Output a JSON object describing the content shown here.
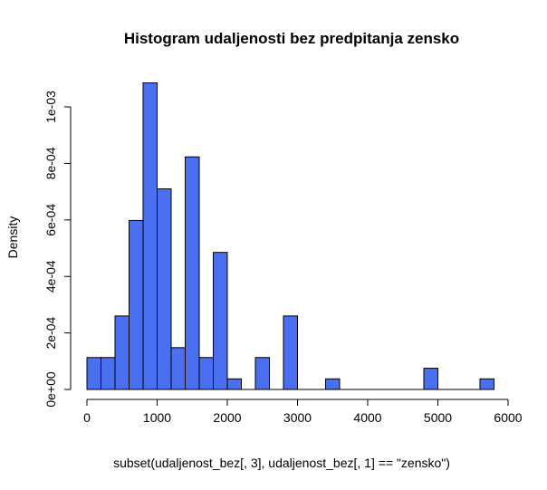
{
  "chart_data": {
    "type": "bar",
    "title": "Histogram udaljenosti bez predpitanja zensko",
    "xlabel": "subset(udaljenost_bez[, 3], udaljenost_bez[, 1] == \"zensko\")",
    "ylabel": "Density",
    "bin_width": 200,
    "x_range": [
      0,
      5800
    ],
    "xlim": [
      0,
      6000
    ],
    "ylim": [
      0,
      0.001
    ],
    "x_ticks": [
      0,
      1000,
      2000,
      3000,
      4000,
      5000,
      6000
    ],
    "x_tick_labels": [
      "0",
      "1000",
      "2000",
      "3000",
      "4000",
      "5000",
      "6000"
    ],
    "y_ticks": [
      0,
      0.0002,
      0.0004,
      0.0006,
      0.0008,
      0.001
    ],
    "y_tick_labels": [
      "0e+00",
      "2e-04",
      "4e-04",
      "6e-04",
      "8e-04",
      "1e-03"
    ],
    "bins": [
      {
        "start": 0,
        "end": 200,
        "value": 0.000113
      },
      {
        "start": 200,
        "end": 400,
        "value": 0.000113
      },
      {
        "start": 400,
        "end": 600,
        "value": 0.00026
      },
      {
        "start": 600,
        "end": 800,
        "value": 0.000598
      },
      {
        "start": 800,
        "end": 1000,
        "value": 0.001085
      },
      {
        "start": 1000,
        "end": 1200,
        "value": 0.00071
      },
      {
        "start": 1200,
        "end": 1400,
        "value": 0.000148
      },
      {
        "start": 1400,
        "end": 1600,
        "value": 0.000823
      },
      {
        "start": 1600,
        "end": 1800,
        "value": 0.000113
      },
      {
        "start": 1800,
        "end": 2000,
        "value": 0.000485
      },
      {
        "start": 2000,
        "end": 2200,
        "value": 3.75e-05
      },
      {
        "start": 2200,
        "end": 2400,
        "value": 0
      },
      {
        "start": 2400,
        "end": 2600,
        "value": 0.000113
      },
      {
        "start": 2600,
        "end": 2800,
        "value": 0
      },
      {
        "start": 2800,
        "end": 3000,
        "value": 0.00026
      },
      {
        "start": 3000,
        "end": 3200,
        "value": 0
      },
      {
        "start": 3200,
        "end": 3400,
        "value": 0
      },
      {
        "start": 3400,
        "end": 3600,
        "value": 3.75e-05
      },
      {
        "start": 3600,
        "end": 3800,
        "value": 0
      },
      {
        "start": 3800,
        "end": 4000,
        "value": 0
      },
      {
        "start": 4000,
        "end": 4200,
        "value": 0
      },
      {
        "start": 4200,
        "end": 4400,
        "value": 0
      },
      {
        "start": 4400,
        "end": 4600,
        "value": 0
      },
      {
        "start": 4600,
        "end": 4800,
        "value": 0
      },
      {
        "start": 4800,
        "end": 5000,
        "value": 7.5e-05
      },
      {
        "start": 5000,
        "end": 5200,
        "value": 0
      },
      {
        "start": 5200,
        "end": 5400,
        "value": 0
      },
      {
        "start": 5400,
        "end": 5600,
        "value": 0
      },
      {
        "start": 5600,
        "end": 5800,
        "value": 3.75e-05
      }
    ],
    "colors": {
      "bar_fill": "#4a6ff0",
      "bar_border": "#000000"
    },
    "grid": false,
    "legend": "none"
  }
}
